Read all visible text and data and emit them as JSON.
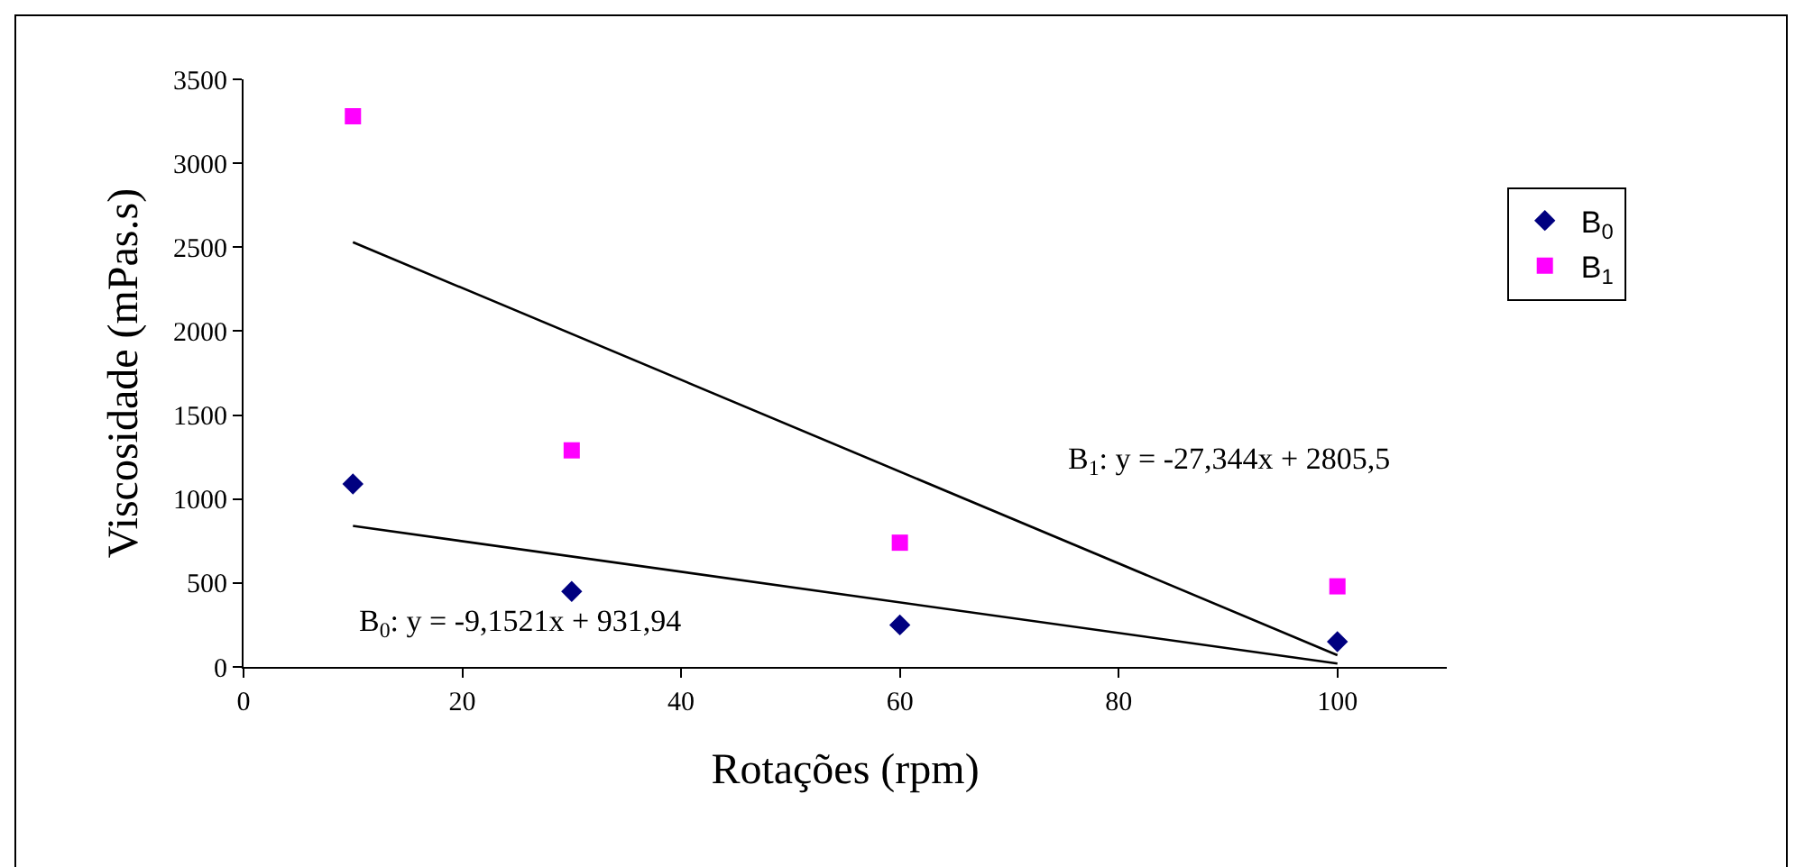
{
  "chart_data": {
    "type": "scatter",
    "xlabel": "Rotações (rpm)",
    "ylabel": "Viscosidade (mPas.s)",
    "xlim": [
      0,
      110
    ],
    "xticks": [
      0,
      20,
      40,
      60,
      80,
      100
    ],
    "ylim": [
      0,
      3500
    ],
    "yticks": [
      0,
      500,
      1000,
      1500,
      2000,
      2500,
      3000,
      3500
    ],
    "grid": false,
    "legend": "right",
    "series": [
      {
        "name": "B$_{0}$",
        "color": "#000080",
        "marker": "diamond",
        "x": [
          10,
          30,
          60,
          100
        ],
        "values": [
          1090,
          450,
          250,
          150
        ]
      },
      {
        "name": "B$_{1}$",
        "color": "#ff00ff",
        "marker": "square",
        "x": [
          10,
          30,
          60,
          100
        ],
        "values": [
          3280,
          1290,
          740,
          480
        ]
      },
      {
        "type": "line",
        "color": "#000000",
        "marker": "none",
        "x": [
          10,
          100
        ],
        "values": [
          840,
          20
        ]
      },
      {
        "type": "line",
        "color": "#000000",
        "marker": "none",
        "x": [
          10,
          100
        ],
        "values": [
          2530,
          70
        ]
      }
    ],
    "annotations": [
      "B$_{1}$: y = -27,344x + 2805,5",
      "B$_{0}$: y = -9,1521x + 931,94"
    ]
  }
}
